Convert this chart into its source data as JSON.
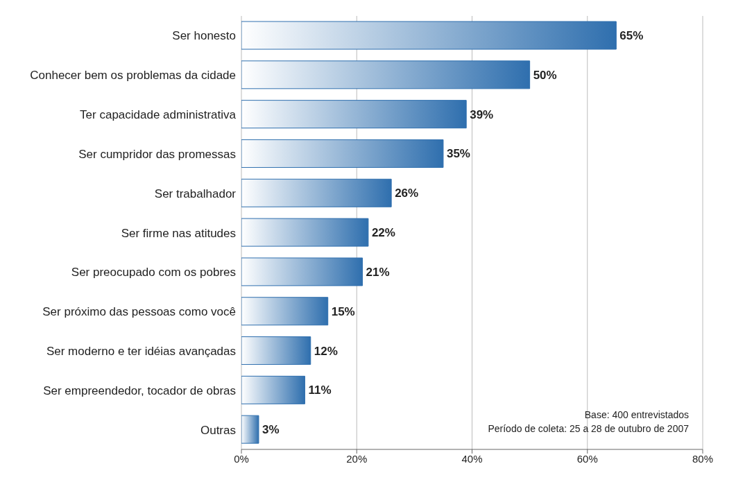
{
  "chart_data": {
    "type": "bar",
    "orientation": "horizontal",
    "categories": [
      "Ser honesto",
      "Conhecer bem os problemas da cidade",
      "Ter capacidade administrativa",
      "Ser cumpridor das promessas",
      "Ser trabalhador",
      "Ser firme nas atitudes",
      "Ser preocupado com os pobres",
      "Ser próximo das pessoas como você",
      "Ser moderno e ter idéias avançadas",
      "Ser empreendedor, tocador de obras",
      "Outras"
    ],
    "values": [
      65,
      50,
      39,
      35,
      26,
      22,
      21,
      15,
      12,
      11,
      3
    ],
    "value_labels": [
      "65%",
      "50%",
      "39%",
      "35%",
      "26%",
      "22%",
      "21%",
      "15%",
      "12%",
      "11%",
      "3%"
    ],
    "color": "#2f6fae",
    "xlim": [
      0,
      80
    ],
    "xticks": [
      {
        "value": 0,
        "label": "0%"
      },
      {
        "value": 20,
        "label": "20%"
      },
      {
        "value": 40,
        "label": "40%"
      },
      {
        "value": 60,
        "label": "60%"
      },
      {
        "value": 80,
        "label": "80%"
      }
    ],
    "grid": "x",
    "legend": false,
    "annotations": [
      "Base: 400 entrevistados",
      "Período de coleta: 25 a 28 de outubro de 2007"
    ]
  }
}
